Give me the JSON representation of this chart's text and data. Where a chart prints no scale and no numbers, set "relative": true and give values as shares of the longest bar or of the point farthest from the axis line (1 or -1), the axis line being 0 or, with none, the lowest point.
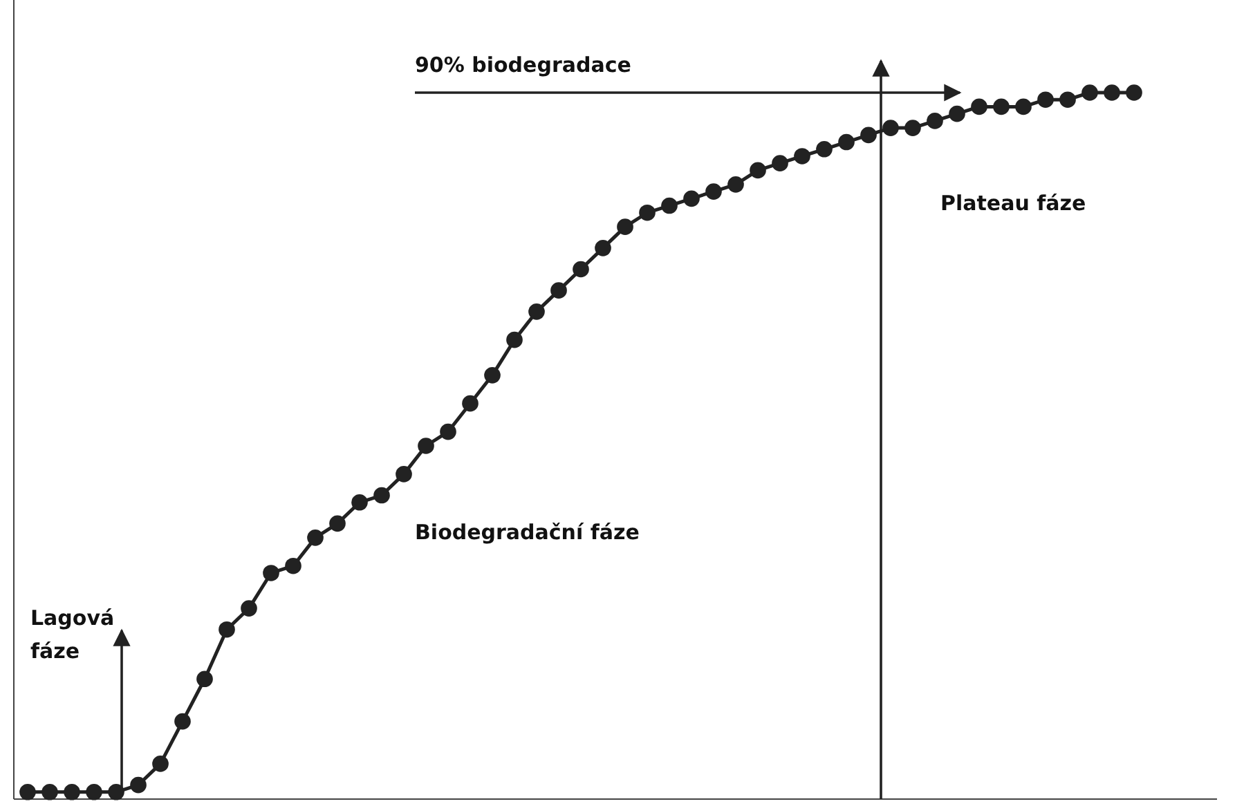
{
  "chart_data": {
    "type": "line",
    "relative": true,
    "marker": "circle",
    "line_style": "solid",
    "tick_labels": false,
    "categories": [
      null,
      null,
      null,
      null,
      null,
      null,
      null,
      null,
      null,
      null,
      null,
      null,
      null,
      null,
      null,
      null,
      null,
      null,
      null,
      null,
      null,
      null,
      null,
      null,
      null,
      null,
      null,
      null,
      null,
      null,
      null,
      null,
      null,
      null,
      null,
      null,
      null,
      null,
      null,
      null,
      null,
      null,
      null,
      null,
      null,
      null,
      null,
      null,
      null,
      null,
      null
    ],
    "series": [
      {
        "color": "#222222",
        "values": [
          0.01,
          0.01,
          0.01,
          0.01,
          0.01,
          0.02,
          0.05,
          0.11,
          0.17,
          0.24,
          0.27,
          0.32,
          0.33,
          0.37,
          0.39,
          0.42,
          0.43,
          0.46,
          0.5,
          0.52,
          0.56,
          0.6,
          0.65,
          0.69,
          0.72,
          0.75,
          0.78,
          0.81,
          0.83,
          0.84,
          0.85,
          0.86,
          0.87,
          0.89,
          0.9,
          0.91,
          0.92,
          0.93,
          0.94,
          0.95,
          0.95,
          0.96,
          0.97,
          0.98,
          0.98,
          0.98,
          0.99,
          0.99,
          1,
          1,
          1
        ]
      }
    ],
    "annotations": [
      "90% biodegradace",
      "Plateau fáze",
      "Biodegradační fáze",
      "Lagová fáze"
    ]
  }
}
